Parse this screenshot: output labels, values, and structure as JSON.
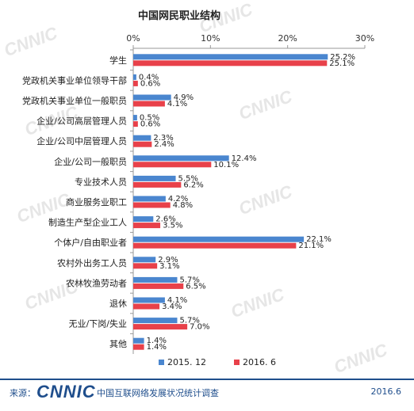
{
  "watermark": "CNNIC",
  "footer": {
    "source_label": "来源：",
    "logo": "CNNIC",
    "org": "中国互联网络发展状况统计调查",
    "date": "2016.6"
  },
  "colors": {
    "series1": "#4a86cf",
    "series2": "#e8414a"
  },
  "chart_data": {
    "type": "bar",
    "orientation": "horizontal",
    "title": "中国网民职业结构",
    "xlim": [
      0,
      30
    ],
    "xticks": [
      "0%",
      "10%",
      "20%",
      "30%"
    ],
    "categories": [
      "学生",
      "党政机关事业单位领导干部",
      "党政机关事业单位一般职员",
      "企业/公司高层管理人员",
      "企业/公司中层管理人员",
      "企业/公司一般职员",
      "专业技术人员",
      "商业服务业职工",
      "制造生产型企业工人",
      "个体户/自由职业者",
      "农村外出务工人员",
      "农林牧渔劳动者",
      "退休",
      "无业/下岗/失业",
      "其他"
    ],
    "series": [
      {
        "name": "2015. 12",
        "values": [
          25.2,
          0.4,
          4.9,
          0.5,
          2.3,
          12.4,
          5.5,
          4.2,
          2.6,
          22.1,
          2.9,
          5.7,
          4.1,
          5.7,
          1.4
        ]
      },
      {
        "name": "2016. 6",
        "values": [
          25.1,
          0.6,
          4.1,
          0.6,
          2.4,
          10.1,
          6.2,
          4.8,
          3.5,
          21.1,
          3.1,
          6.5,
          3.4,
          7.0,
          1.4
        ]
      }
    ],
    "legend_position": "bottom-center",
    "grid": false
  }
}
